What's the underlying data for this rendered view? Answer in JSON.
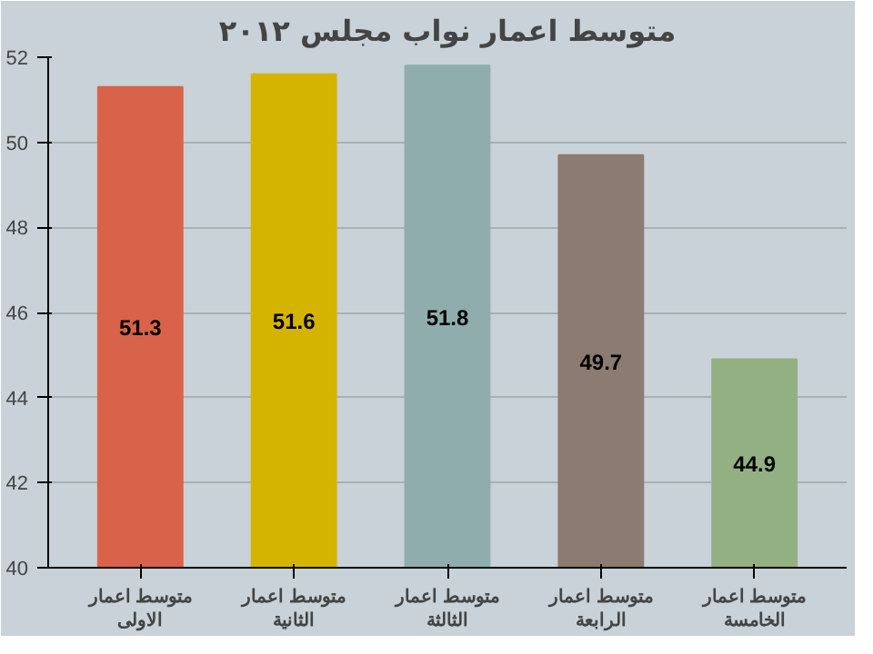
{
  "chart_data": {
    "type": "bar",
    "title": "متوسط اعمار نواب مجلس ٢٠١٢",
    "categories": [
      "متوسط اعمار\nالاولى",
      "متوسط اعمار\nالثانية",
      "متوسط اعمار\nالثالثة",
      "متوسط اعمار\nالرابعة",
      "متوسط اعمار\nالخامسة"
    ],
    "values": [
      51.3,
      51.6,
      51.8,
      49.7,
      44.9
    ],
    "colors": [
      "#d9634a",
      "#d4b400",
      "#8fadad",
      "#8c7b70",
      "#93b083"
    ],
    "ylim": [
      40,
      52
    ],
    "yticks": [
      40,
      42,
      44,
      46,
      48,
      50,
      52
    ],
    "grid": "y",
    "data_labels": true
  }
}
